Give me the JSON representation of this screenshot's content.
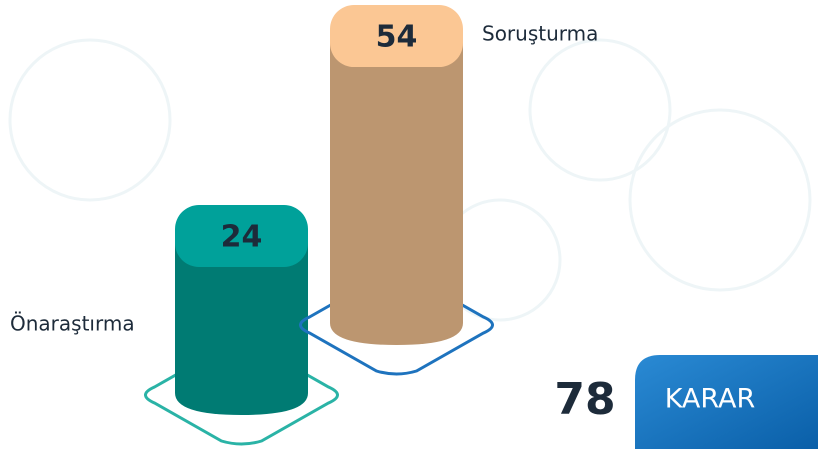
{
  "chart_data": {
    "type": "bar3d",
    "categories": [
      "Önaraştırma",
      "Soruşturma"
    ],
    "values": [
      24,
      54
    ],
    "colors": [
      "#007b73",
      "#bc9670"
    ],
    "cap_colors": [
      "#00a19a",
      "#fbc794"
    ],
    "base_colors": [
      "#2ab3a6",
      "#1e73be"
    ],
    "total": 78,
    "total_label": "KARAR"
  }
}
